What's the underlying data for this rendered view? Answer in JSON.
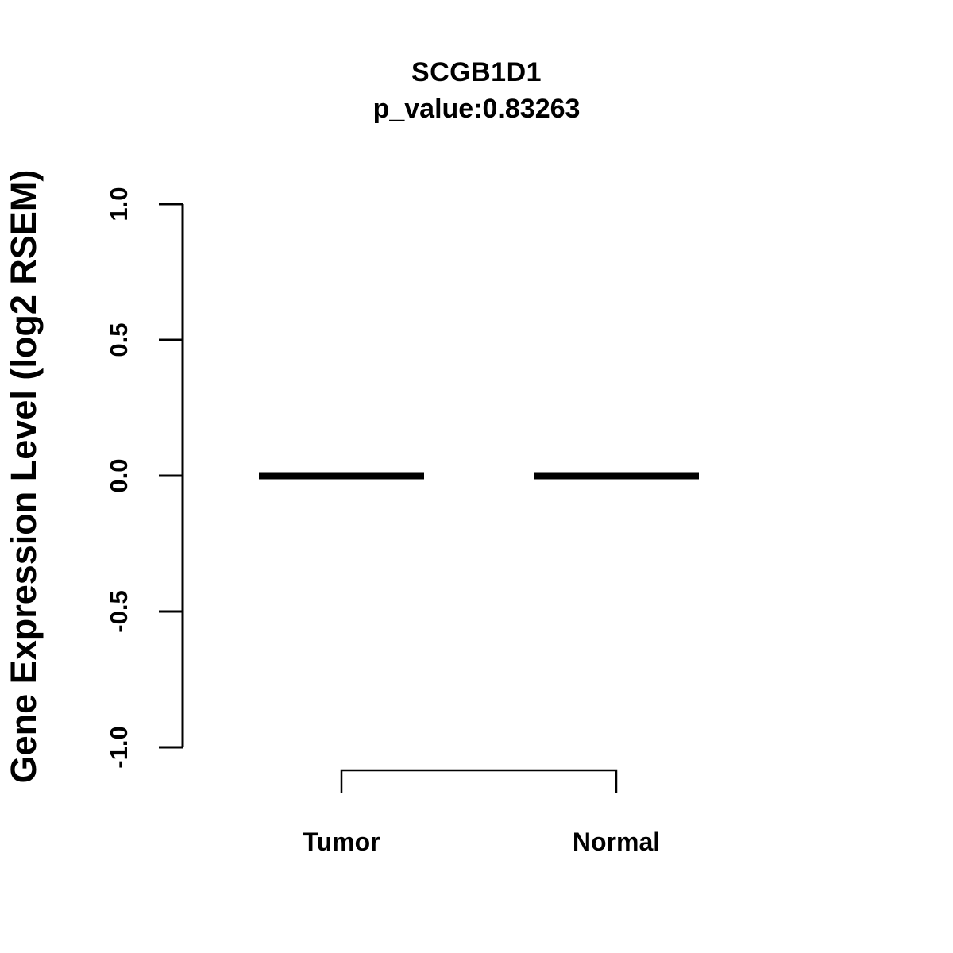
{
  "figure": {
    "background_color": "#ffffff",
    "ink_color": "#000000"
  },
  "chart_data": {
    "type": "boxplot",
    "title": "SCGB1D1",
    "subtitle": "p_value:0.83263",
    "p_value": 0.83263,
    "xlabel": "",
    "ylabel": "Gene Expression Level (log2 RSEM)",
    "ylim": [
      -1.0,
      1.0
    ],
    "grid": false,
    "legend": false,
    "yticks": [
      {
        "value": 1.0,
        "label": "1.0"
      },
      {
        "value": 0.5,
        "label": "0.5"
      },
      {
        "value": 0.0,
        "label": "0.0"
      },
      {
        "value": -0.5,
        "label": "-0.5"
      },
      {
        "value": -1.0,
        "label": "-1.0"
      }
    ],
    "categories": [
      "Tumor",
      "Normal"
    ],
    "groups": [
      {
        "label": "Tumor",
        "median": 0.0,
        "q1": 0.0,
        "q3": 0.0,
        "whisker_low": 0.0,
        "whisker_high": 0.0
      },
      {
        "label": "Normal",
        "median": 0.0,
        "q1": 0.0,
        "q3": 0.0,
        "whisker_low": 0.0,
        "whisker_high": 0.0
      }
    ],
    "comparison_bracket": {
      "groups": [
        "Tumor",
        "Normal"
      ],
      "label": ""
    }
  }
}
